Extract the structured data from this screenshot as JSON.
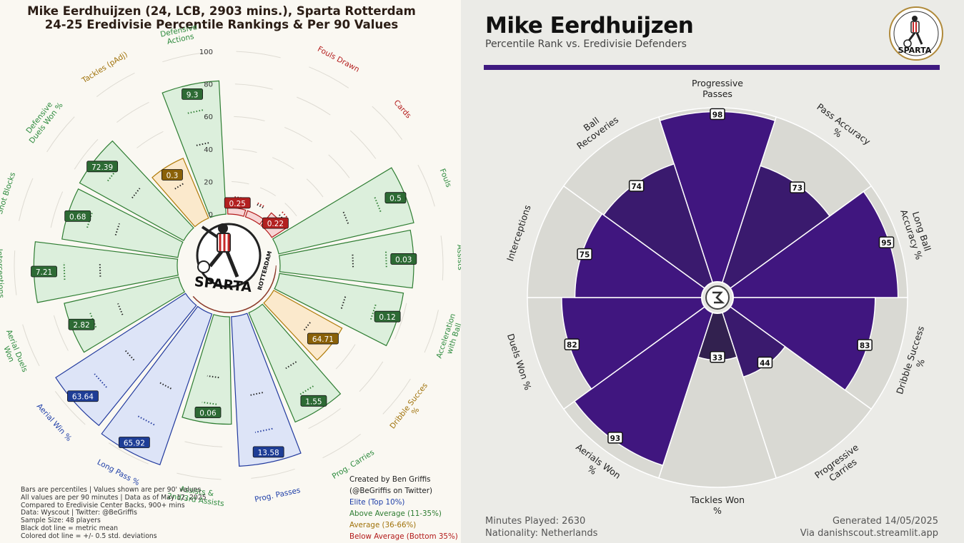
{
  "left_panel": {
    "title_line1": "Mike Eerdhuijzen (24, LCB, 2903 mins.), Sparta Rotterdam",
    "title_line2": "24-25 Eredivisie Percentile Rankings & Per 90 Values",
    "scale_labels": [
      "100",
      "80",
      "60",
      "40",
      "20",
      "0"
    ],
    "center_logo_text": "SPARTA",
    "center_logo_subtext": "ROTTERDAM",
    "notes": [
      "Bars are percentiles | Values shown are per 90' values",
      "All values are per 90 minutes | Data as of May 12, 2025",
      "Compared to Eredivisie Center Backs, 900+ mins",
      "Data: Wyscout | Twitter: @BeGriffis",
      "Sample Size: 48 players",
      "Black dot line = metric mean",
      "Colored dot line = +/- 0.5 std. deviations"
    ],
    "credit_line1": "Created by Ben Griffis",
    "credit_line2": "(@BeGriffis on Twitter)",
    "legend": [
      {
        "label": "Elite (Top 10%)",
        "color": "#1f3fa8"
      },
      {
        "label": "Above Average (11-35%)",
        "color": "#2e7d32"
      },
      {
        "label": "Average (36-66%)",
        "color": "#a0720a"
      },
      {
        "label": "Below Average (Bottom 35%)",
        "color": "#b31b1b"
      }
    ]
  },
  "right_panel": {
    "player_name": "Mike Eerdhuijzen",
    "subtitle": "Percentile Rank vs. Eredivisie Defenders",
    "footer_left_1": "Minutes Played: 2630",
    "footer_left_2": "Nationality: Netherlands",
    "footer_right_1": "Generated 14/05/2025",
    "footer_right_2": "Via danishscout.streamlit.app",
    "logo_text": "SPARTA",
    "logo_subtext": "ROTTERDAM",
    "bar_color": "#3f1a80",
    "background_wedge_color": "#d9d9d3"
  },
  "chart_data": [
    {
      "type": "polar-bar",
      "title": "24-25 Eredivisie Percentile Rankings & Per 90 Values",
      "categories": [
        {
          "label": "Fouls Drawn",
          "percentile": 3,
          "value": "",
          "tier": "below"
        },
        {
          "label": "Cards",
          "percentile": 10,
          "value": "0.22",
          "tier": "below"
        },
        {
          "label": "Fouls",
          "percentile": 85,
          "value": "0.5",
          "tier": "above"
        },
        {
          "label": "Expected Assists",
          "percentile": 82,
          "value": "0.03",
          "tier": "above"
        },
        {
          "label": "Acceleration with Ball",
          "percentile": 77,
          "value": "0.12",
          "tier": "above"
        },
        {
          "label": "Dribble Succes %",
          "percentile": 48,
          "value": "64.71",
          "tier": "average"
        },
        {
          "label": "Prog. Carries",
          "percentile": 73,
          "value": "1.55",
          "tier": "above"
        },
        {
          "label": "Prog. Passes",
          "percentile": 92,
          "value": "13.58",
          "tier": "elite"
        },
        {
          "label": "Assists & 2nd/3rd Assists",
          "percentile": 66,
          "value": "0.06",
          "tier": "above"
        },
        {
          "label": "Long Pass %",
          "percentile": 98,
          "value": "65.92",
          "tier": "elite"
        },
        {
          "label": "Aerial Win %",
          "percentile": 95,
          "value": "63.64",
          "tier": "elite"
        },
        {
          "label": "Aerial Duels Won",
          "percentile": 72,
          "value": "2.82",
          "tier": "above"
        },
        {
          "label": "Interceptions (pAdj)",
          "percentile": 88,
          "value": "7.21",
          "tier": "above"
        },
        {
          "label": "Shot Blocks",
          "percentile": 72,
          "value": "0.68",
          "tier": "above"
        },
        {
          "label": "Defensive Duels Won %",
          "percentile": 73,
          "value": "72.39",
          "tier": "above"
        },
        {
          "label": "Tackles (pAdj)",
          "percentile": 40,
          "value": "0.3",
          "tier": "average"
        },
        {
          "label": "Defensive Actions",
          "percentile": 82,
          "value": "9.3",
          "tier": "above"
        },
        {
          "label": "Unlabeled",
          "percentile": 3,
          "value": "0.25",
          "tier": "below"
        }
      ],
      "rlim": [
        0,
        100
      ]
    },
    {
      "type": "polar-bar",
      "title": "Percentile Rank vs. Eredivisie Defenders",
      "categories": [
        {
          "label": "Progressive Passes",
          "value": 98
        },
        {
          "label": "Pass Accuracy %",
          "value": 73
        },
        {
          "label": "Long Ball Accuracy %",
          "value": 95
        },
        {
          "label": "Dribble Success %",
          "value": 83
        },
        {
          "label": "Progressive Carries",
          "value": 44
        },
        {
          "label": "Tackles Won %",
          "value": 33
        },
        {
          "label": "Aerials Won %",
          "value": 93
        },
        {
          "label": "Duels Won %",
          "value": 82
        },
        {
          "label": "Interceptions",
          "value": 75
        },
        {
          "label": "Ball Recoveries",
          "value": 74
        }
      ],
      "rlim": [
        0,
        100
      ]
    }
  ]
}
